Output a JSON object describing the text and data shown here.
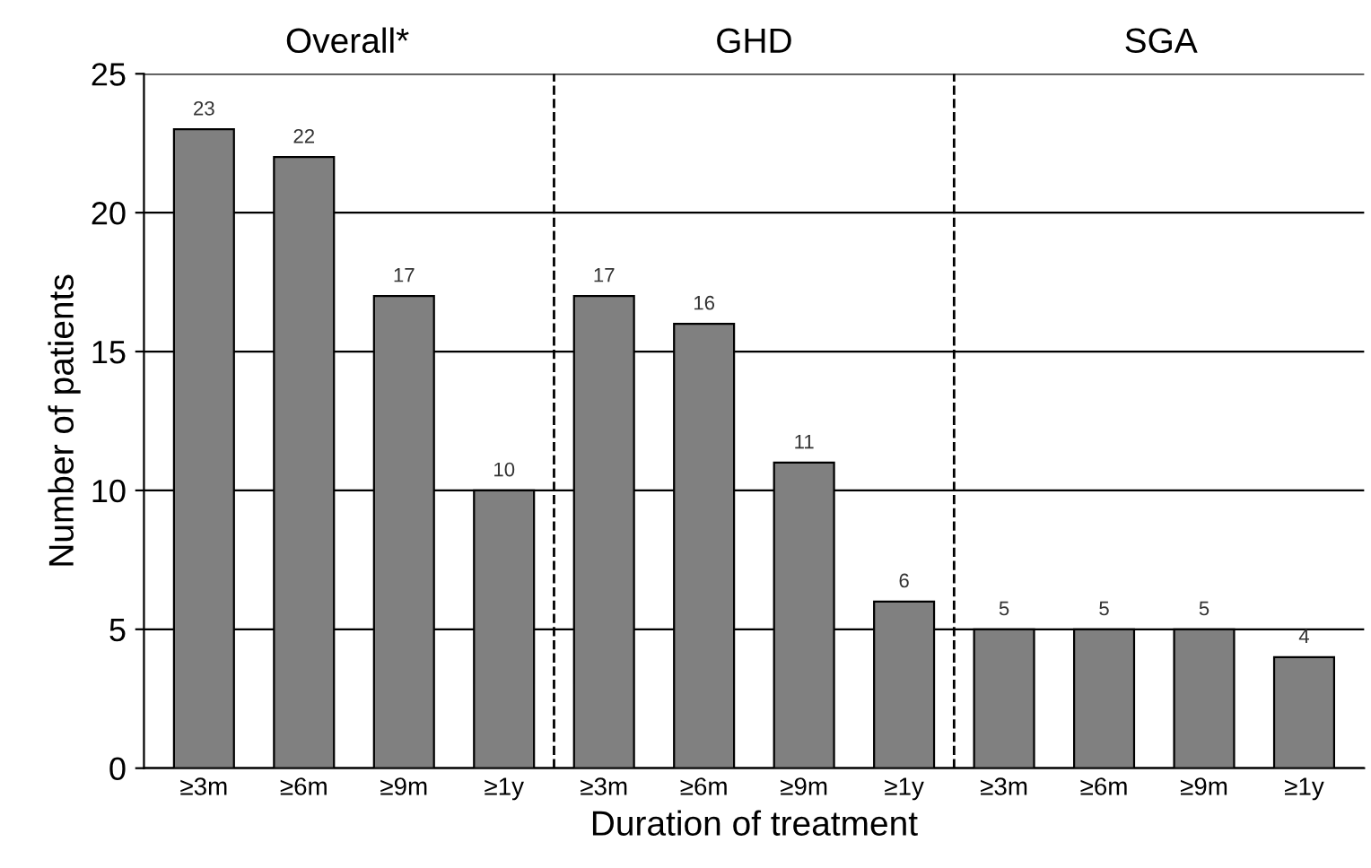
{
  "chart_data": {
    "type": "bar",
    "categories": [
      "≥3m",
      "≥6m",
      "≥9m",
      "≥1y",
      "≥3m",
      "≥6m",
      "≥9m",
      "≥1y",
      "≥3m",
      "≥6m",
      "≥9m",
      "≥1y"
    ],
    "values": [
      23,
      22,
      17,
      10,
      17,
      16,
      11,
      6,
      5,
      5,
      5,
      4
    ],
    "color": "#808080",
    "xlabel": "Duration of treatment",
    "ylabel": "Number of patients",
    "ylim": [
      0,
      25
    ],
    "yticks": [
      0,
      5,
      10,
      15,
      20,
      25
    ],
    "grid": "y",
    "data_labels": true,
    "annotations": [
      "Overall*",
      "GHD",
      "SGA"
    ]
  }
}
